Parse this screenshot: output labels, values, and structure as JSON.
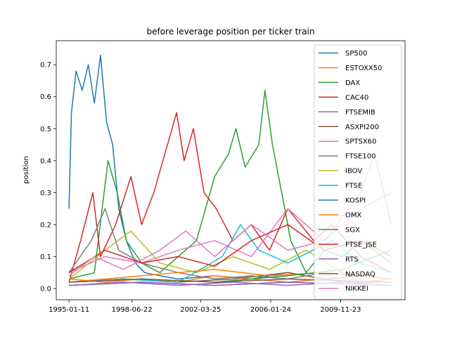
{
  "chart_data": {
    "type": "line",
    "title": "before leverage position per ticker train",
    "xlabel": "",
    "ylabel": "position",
    "x_tick_labels": [
      "1995-01-11",
      "1998-06-22",
      "2002-03-25",
      "2006-01-24",
      "2009-11-23"
    ],
    "x_ticks": [
      "1995-01-11",
      "1998-06-22",
      "2002-03-25",
      "2006-01-24",
      "2009-11-23"
    ],
    "x_range": [
      "1994-05-01",
      "2013-06-01"
    ],
    "ylim": [
      -0.035,
      0.775
    ],
    "y_ticks": [
      0.0,
      0.1,
      0.2,
      0.3,
      0.4,
      0.5,
      0.6,
      0.7
    ],
    "y_tick_labels": [
      "0.0",
      "0.1",
      "0.2",
      "0.3",
      "0.4",
      "0.5",
      "0.6",
      "0.7"
    ],
    "grid": false,
    "legend_position": "top-right",
    "series": [
      {
        "name": "SP500",
        "color": "#1f77b4",
        "points": [
          [
            "1995-01-11",
            0.25
          ],
          [
            "1995-03-01",
            0.55
          ],
          [
            "1995-06-01",
            0.68
          ],
          [
            "1995-10-01",
            0.62
          ],
          [
            "1996-02-01",
            0.7
          ],
          [
            "1996-06-01",
            0.58
          ],
          [
            "1996-10-01",
            0.73
          ],
          [
            "1997-02-01",
            0.52
          ],
          [
            "1997-06-01",
            0.45
          ],
          [
            "1997-10-01",
            0.25
          ],
          [
            "1998-03-01",
            0.15
          ],
          [
            "1998-09-01",
            0.08
          ],
          [
            "1999-03-01",
            0.05
          ],
          [
            "2000-01-01",
            0.04
          ],
          [
            "2001-01-01",
            0.03
          ],
          [
            "2003-01-01",
            0.04
          ],
          [
            "2005-01-01",
            0.03
          ],
          [
            "2007-01-01",
            0.05
          ],
          [
            "2009-01-01",
            0.03
          ],
          [
            "2011-01-01",
            0.04
          ],
          [
            "2012-09-01",
            0.03
          ]
        ]
      },
      {
        "name": "ESTOXX50",
        "color": "#ff7f0e",
        "points": [
          [
            "1995-01-11",
            0.03
          ],
          [
            "1997-01-01",
            0.02
          ],
          [
            "1999-01-01",
            0.03
          ],
          [
            "2001-01-01",
            0.02
          ],
          [
            "2003-01-01",
            0.04
          ],
          [
            "2005-01-01",
            0.03
          ],
          [
            "2007-01-01",
            0.02
          ],
          [
            "2009-01-01",
            0.03
          ],
          [
            "2011-01-01",
            0.02
          ],
          [
            "2012-09-01",
            0.03
          ]
        ]
      },
      {
        "name": "DAX",
        "color": "#2ca02c",
        "points": [
          [
            "1995-01-11",
            0.03
          ],
          [
            "1996-06-01",
            0.05
          ],
          [
            "1997-03-01",
            0.4
          ],
          [
            "1997-09-01",
            0.3
          ],
          [
            "1998-03-01",
            0.15
          ],
          [
            "1999-01-01",
            0.08
          ],
          [
            "2000-01-01",
            0.05
          ],
          [
            "2001-01-01",
            0.1
          ],
          [
            "2002-01-01",
            0.15
          ],
          [
            "2003-01-01",
            0.35
          ],
          [
            "2003-10-01",
            0.42
          ],
          [
            "2004-03-01",
            0.5
          ],
          [
            "2004-09-01",
            0.38
          ],
          [
            "2005-06-01",
            0.45
          ],
          [
            "2005-10-01",
            0.62
          ],
          [
            "2006-03-01",
            0.45
          ],
          [
            "2006-09-01",
            0.3
          ],
          [
            "2007-03-01",
            0.15
          ],
          [
            "2008-01-01",
            0.05
          ],
          [
            "2009-01-01",
            0.12
          ],
          [
            "2010-01-01",
            0.1
          ],
          [
            "2011-01-01",
            0.15
          ],
          [
            "2012-09-01",
            0.08
          ]
        ]
      },
      {
        "name": "CAC40",
        "color": "#d62728",
        "points": [
          [
            "1995-01-11",
            0.02
          ],
          [
            "1995-09-01",
            0.15
          ],
          [
            "1996-05-01",
            0.3
          ],
          [
            "1996-10-01",
            0.1
          ],
          [
            "1997-08-01",
            0.2
          ],
          [
            "1998-06-01",
            0.35
          ],
          [
            "1999-01-01",
            0.2
          ],
          [
            "1999-09-01",
            0.3
          ],
          [
            "2000-06-01",
            0.45
          ],
          [
            "2000-12-01",
            0.55
          ],
          [
            "2001-05-01",
            0.4
          ],
          [
            "2001-11-01",
            0.5
          ],
          [
            "2002-06-01",
            0.3
          ],
          [
            "2003-02-01",
            0.25
          ],
          [
            "2004-01-01",
            0.15
          ],
          [
            "2005-01-01",
            0.2
          ],
          [
            "2006-01-01",
            0.12
          ],
          [
            "2007-01-01",
            0.25
          ],
          [
            "2008-06-01",
            0.15
          ],
          [
            "2009-06-01",
            0.2
          ],
          [
            "2011-01-01",
            0.1
          ],
          [
            "2012-09-01",
            0.05
          ]
        ]
      },
      {
        "name": "FTSEMIB",
        "color": "#9467bd",
        "points": [
          [
            "1995-01-11",
            0.01
          ],
          [
            "1998-01-01",
            0.02
          ],
          [
            "2001-01-01",
            0.01
          ],
          [
            "2004-01-01",
            0.02
          ],
          [
            "2007-01-01",
            0.01
          ],
          [
            "2010-01-01",
            0.02
          ],
          [
            "2012-09-01",
            0.01
          ]
        ]
      },
      {
        "name": "ASXPI200",
        "color": "#8c564b",
        "points": [
          [
            "1995-01-11",
            0.02
          ],
          [
            "1998-01-01",
            0.03
          ],
          [
            "2001-01-01",
            0.02
          ],
          [
            "2004-01-01",
            0.03
          ],
          [
            "2007-01-01",
            0.05
          ],
          [
            "2010-01-01",
            0.02
          ],
          [
            "2012-09-01",
            0.02
          ]
        ]
      },
      {
        "name": "SPTSX60",
        "color": "#e377c2",
        "points": [
          [
            "1995-01-11",
            0.05
          ],
          [
            "1997-01-01",
            0.1
          ],
          [
            "1999-01-01",
            0.08
          ],
          [
            "2001-01-01",
            0.12
          ],
          [
            "2003-01-01",
            0.15
          ],
          [
            "2005-01-01",
            0.1
          ],
          [
            "2007-01-01",
            0.25
          ],
          [
            "2009-01-01",
            0.15
          ],
          [
            "2011-01-01",
            0.3
          ],
          [
            "2011-10-01",
            0.42
          ],
          [
            "2012-09-01",
            0.2
          ]
        ]
      },
      {
        "name": "FTSE100",
        "color": "#7f7f7f",
        "points": [
          [
            "1995-01-11",
            0.05
          ],
          [
            "1996-04-01",
            0.15
          ],
          [
            "1997-01-01",
            0.25
          ],
          [
            "1997-10-01",
            0.12
          ],
          [
            "1999-01-01",
            0.08
          ],
          [
            "2001-01-01",
            0.05
          ],
          [
            "2003-01-01",
            0.03
          ],
          [
            "2005-01-01",
            0.04
          ],
          [
            "2007-01-01",
            0.03
          ],
          [
            "2009-01-01",
            0.05
          ],
          [
            "2012-09-01",
            0.03
          ]
        ]
      },
      {
        "name": "IBOV",
        "color": "#bcbd22",
        "points": [
          [
            "1995-01-11",
            0.03
          ],
          [
            "1997-01-01",
            0.12
          ],
          [
            "1998-06-01",
            0.18
          ],
          [
            "2000-01-01",
            0.08
          ],
          [
            "2002-01-01",
            0.05
          ],
          [
            "2004-01-01",
            0.1
          ],
          [
            "2006-01-01",
            0.06
          ],
          [
            "2008-01-01",
            0.12
          ],
          [
            "2010-01-01",
            0.05
          ],
          [
            "2012-09-01",
            0.03
          ]
        ]
      },
      {
        "name": "FTSE",
        "color": "#17becf",
        "points": [
          [
            "1995-01-11",
            0.02
          ],
          [
            "1998-01-01",
            0.03
          ],
          [
            "2001-01-01",
            0.02
          ],
          [
            "2003-06-01",
            0.1
          ],
          [
            "2004-06-01",
            0.2
          ],
          [
            "2005-06-01",
            0.12
          ],
          [
            "2007-01-01",
            0.08
          ],
          [
            "2009-06-01",
            0.15
          ],
          [
            "2011-01-01",
            0.08
          ],
          [
            "2012-09-01",
            0.05
          ]
        ]
      },
      {
        "name": "KOSPI",
        "color": "#1f77b4",
        "points": [
          [
            "1995-01-11",
            0.01
          ],
          [
            "1999-01-01",
            0.02
          ],
          [
            "2003-01-01",
            0.01
          ],
          [
            "2007-01-01",
            0.02
          ],
          [
            "2012-09-01",
            0.01
          ]
        ]
      },
      {
        "name": "OMX",
        "color": "#ff7f0e",
        "points": [
          [
            "1995-01-11",
            0.02
          ],
          [
            "1999-01-01",
            0.04
          ],
          [
            "2003-01-01",
            0.06
          ],
          [
            "2006-01-01",
            0.04
          ],
          [
            "2009-01-01",
            0.05
          ],
          [
            "2012-09-01",
            0.03
          ]
        ]
      },
      {
        "name": "SGX",
        "color": "#2ca02c",
        "points": [
          [
            "1995-01-11",
            0.02
          ],
          [
            "1999-01-01",
            0.03
          ],
          [
            "2003-01-01",
            0.02
          ],
          [
            "2007-01-01",
            0.04
          ],
          [
            "2010-01-01",
            0.06
          ],
          [
            "2012-09-01",
            0.12
          ]
        ]
      },
      {
        "name": "FTSE_JSE",
        "color": "#d62728",
        "points": [
          [
            "1995-01-11",
            0.05
          ],
          [
            "1997-01-01",
            0.12
          ],
          [
            "1999-01-01",
            0.08
          ],
          [
            "2001-01-01",
            0.1
          ],
          [
            "2003-01-01",
            0.07
          ],
          [
            "2005-01-01",
            0.15
          ],
          [
            "2007-01-01",
            0.2
          ],
          [
            "2009-01-01",
            0.12
          ],
          [
            "2011-01-01",
            0.15
          ],
          [
            "2012-09-01",
            0.1
          ]
        ]
      },
      {
        "name": "RTS",
        "color": "#9467bd",
        "points": [
          [
            "1995-01-11",
            0.01
          ],
          [
            "1999-01-01",
            0.02
          ],
          [
            "2003-01-01",
            0.01
          ],
          [
            "2007-01-01",
            0.02
          ],
          [
            "2012-09-01",
            0.01
          ]
        ]
      },
      {
        "name": "NASDAQ",
        "color": "#8c564b",
        "points": [
          [
            "1995-01-11",
            0.02
          ],
          [
            "1999-01-01",
            0.03
          ],
          [
            "2003-01-01",
            0.02
          ],
          [
            "2007-01-01",
            0.03
          ],
          [
            "2012-09-01",
            0.02
          ]
        ]
      },
      {
        "name": "NIKKEI",
        "color": "#e377c2",
        "points": [
          [
            "1995-01-11",
            0.04
          ],
          [
            "1996-06-01",
            0.1
          ],
          [
            "1998-01-01",
            0.06
          ],
          [
            "2000-01-01",
            0.12
          ],
          [
            "2001-06-01",
            0.18
          ],
          [
            "2003-01-01",
            0.1
          ],
          [
            "2005-01-01",
            0.2
          ],
          [
            "2007-01-01",
            0.12
          ],
          [
            "2009-01-01",
            0.15
          ],
          [
            "2011-01-01",
            0.25
          ],
          [
            "2012-09-01",
            0.3
          ]
        ]
      }
    ]
  }
}
